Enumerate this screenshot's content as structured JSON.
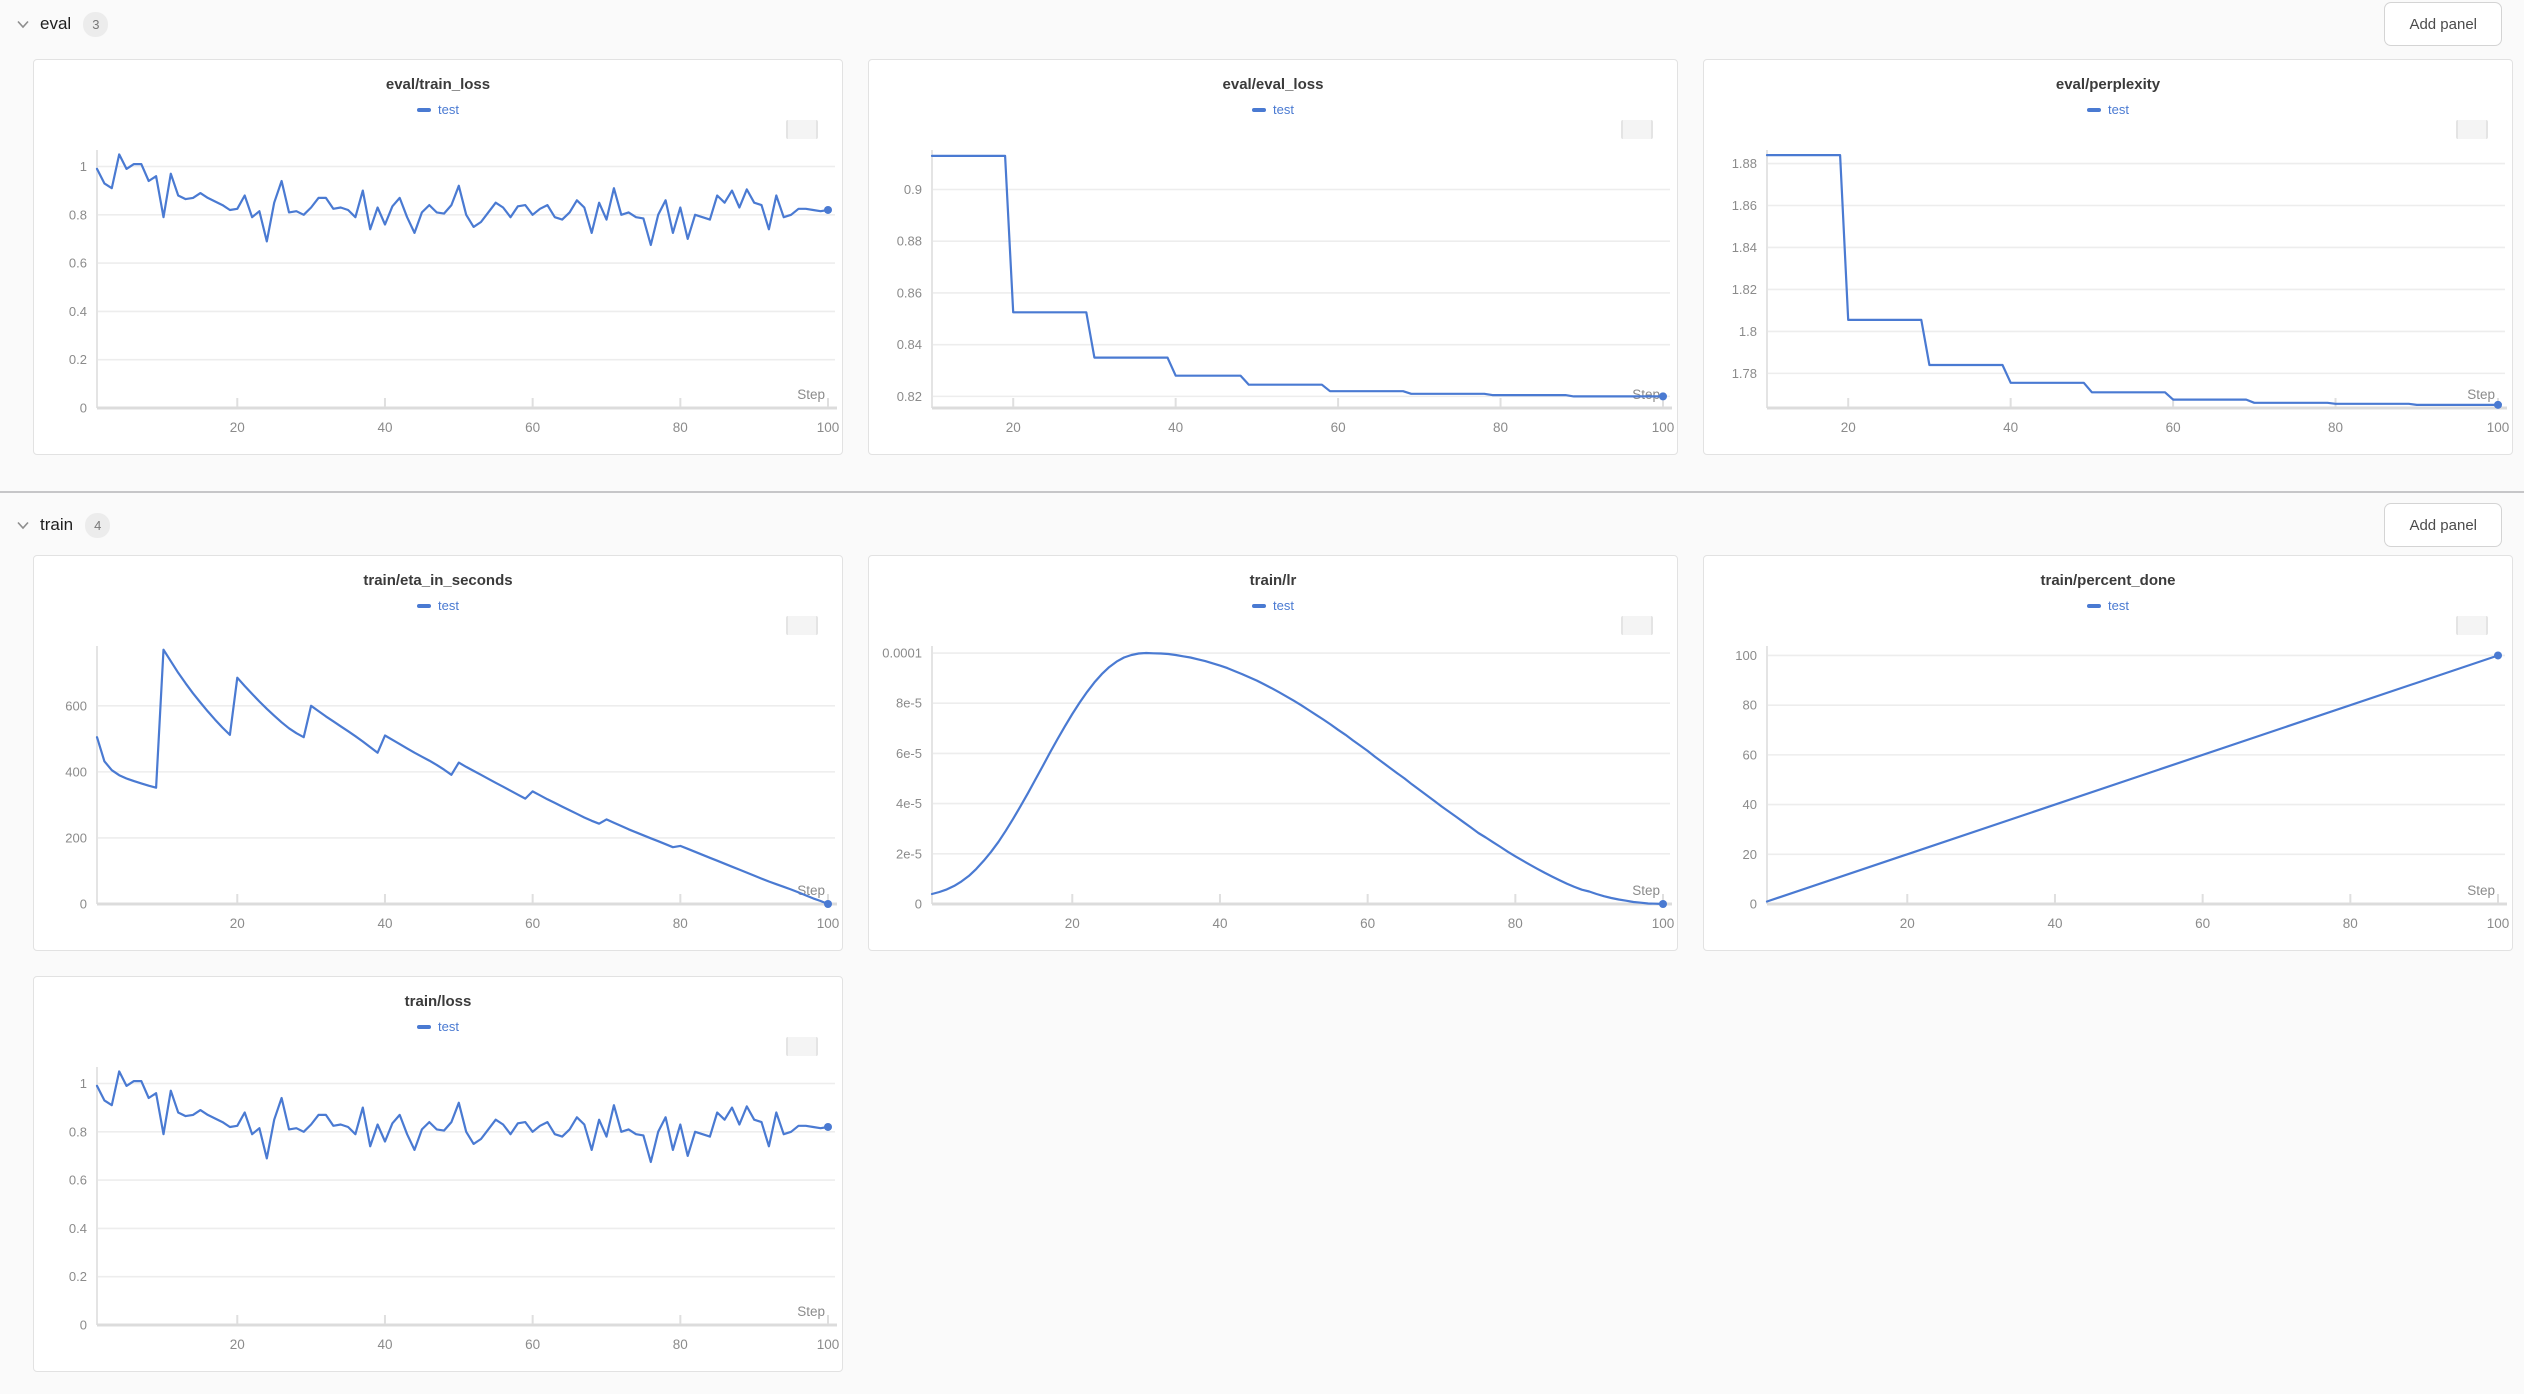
{
  "page": {
    "background": "#fafafa",
    "accent_blue": "#4a7ad2",
    "divider_color": "#c6c6c8"
  },
  "sections": [
    {
      "name": "eval",
      "badge": "3",
      "add_panel_label": "Add panel",
      "chevron_icon": "chevron-down-icon"
    },
    {
      "name": "train",
      "badge": "4",
      "add_panel_label": "Add panel",
      "chevron_icon": "chevron-down-icon"
    }
  ],
  "chart_data": [
    {
      "type": "line",
      "title": "eval/train_loss",
      "xlabel": "Step",
      "legend_position": "top-center",
      "grid": true,
      "color": "#4a7ad2",
      "x_min": 1,
      "x_max": 100,
      "x_ticks": [
        20,
        40,
        60,
        80,
        100
      ],
      "y_min": 0,
      "y_max": 1.06,
      "y_ticks": [
        {
          "v": 0,
          "label": "0"
        },
        {
          "v": 0.2,
          "label": "0.2"
        },
        {
          "v": 0.4,
          "label": "0.4"
        },
        {
          "v": 0.6,
          "label": "0.6"
        },
        {
          "v": 0.8,
          "label": "0.8"
        },
        {
          "v": 1,
          "label": "1"
        }
      ],
      "end_dot": true,
      "series": [
        {
          "name": "test",
          "x_start": 1,
          "y": [
            0.99,
            0.93,
            0.91,
            1.05,
            0.99,
            1.01,
            1.01,
            0.94,
            0.96,
            0.79,
            0.97,
            0.88,
            0.865,
            0.87,
            0.89,
            0.87,
            0.855,
            0.84,
            0.82,
            0.825,
            0.88,
            0.79,
            0.815,
            0.69,
            0.85,
            0.94,
            0.81,
            0.815,
            0.8,
            0.83,
            0.87,
            0.87,
            0.825,
            0.83,
            0.82,
            0.79,
            0.9,
            0.74,
            0.83,
            0.76,
            0.835,
            0.87,
            0.79,
            0.725,
            0.81,
            0.84,
            0.81,
            0.805,
            0.84,
            0.92,
            0.8,
            0.75,
            0.77,
            0.81,
            0.85,
            0.83,
            0.79,
            0.835,
            0.84,
            0.8,
            0.825,
            0.84,
            0.79,
            0.78,
            0.81,
            0.86,
            0.83,
            0.725,
            0.85,
            0.78,
            0.91,
            0.8,
            0.81,
            0.79,
            0.785,
            0.675,
            0.8,
            0.86,
            0.725,
            0.83,
            0.7,
            0.8,
            0.79,
            0.78,
            0.88,
            0.85,
            0.9,
            0.83,
            0.905,
            0.85,
            0.84,
            0.74,
            0.88,
            0.79,
            0.8,
            0.825,
            0.825,
            0.82,
            0.815,
            0.82
          ]
        }
      ]
    },
    {
      "type": "line",
      "title": "eval/eval_loss",
      "xlabel": "Step",
      "legend_position": "top-center",
      "grid": true,
      "color": "#4a7ad2",
      "x_min": 10,
      "x_max": 100,
      "x_ticks": [
        20,
        40,
        60,
        80,
        100
      ],
      "y_min": 0.8155,
      "y_max": 0.9145,
      "y_ticks": [
        {
          "v": 0.82,
          "label": "0.82"
        },
        {
          "v": 0.84,
          "label": "0.84"
        },
        {
          "v": 0.86,
          "label": "0.86"
        },
        {
          "v": 0.88,
          "label": "0.88"
        },
        {
          "v": 0.9,
          "label": "0.9"
        }
      ],
      "end_dot": true,
      "series": [
        {
          "name": "test",
          "x": [
            10,
            19,
            20,
            29,
            30,
            39,
            40,
            48,
            49,
            58,
            59,
            68,
            69,
            78,
            79,
            88,
            89,
            100
          ],
          "y": [
            0.913,
            0.913,
            0.8525,
            0.8525,
            0.835,
            0.835,
            0.828,
            0.828,
            0.8245,
            0.8245,
            0.822,
            0.822,
            0.821,
            0.821,
            0.8205,
            0.8205,
            0.82,
            0.82
          ]
        }
      ]
    },
    {
      "type": "line",
      "title": "eval/perplexity",
      "xlabel": "Step",
      "legend_position": "top-center",
      "grid": true,
      "color": "#4a7ad2",
      "x_min": 10,
      "x_max": 100,
      "x_ticks": [
        20,
        40,
        60,
        80,
        100
      ],
      "y_min": 1.7635,
      "y_max": 1.8855,
      "y_ticks": [
        {
          "v": 1.78,
          "label": "1.78"
        },
        {
          "v": 1.8,
          "label": "1.8"
        },
        {
          "v": 1.82,
          "label": "1.82"
        },
        {
          "v": 1.84,
          "label": "1.84"
        },
        {
          "v": 1.86,
          "label": "1.86"
        },
        {
          "v": 1.88,
          "label": "1.88"
        }
      ],
      "end_dot": true,
      "series": [
        {
          "name": "test",
          "x": [
            10,
            19,
            20,
            29,
            30,
            39,
            40,
            49,
            50,
            59,
            60,
            69,
            70,
            79,
            80,
            89,
            90,
            100
          ],
          "y": [
            1.884,
            1.884,
            1.8055,
            1.8055,
            1.784,
            1.784,
            1.7755,
            1.7755,
            1.771,
            1.771,
            1.7675,
            1.7675,
            1.766,
            1.766,
            1.7655,
            1.7655,
            1.765,
            1.765
          ]
        }
      ]
    },
    {
      "type": "line",
      "title": "train/eta_in_seconds",
      "xlabel": "Step",
      "legend_position": "top-center",
      "grid": true,
      "color": "#4a7ad2",
      "x_min": 1,
      "x_max": 100,
      "x_ticks": [
        20,
        40,
        60,
        80,
        100
      ],
      "y_min": 0,
      "y_max": 775,
      "y_ticks": [
        {
          "v": 0,
          "label": "0"
        },
        {
          "v": 200,
          "label": "200"
        },
        {
          "v": 400,
          "label": "400"
        },
        {
          "v": 600,
          "label": "600"
        }
      ],
      "end_dot": true,
      "series": [
        {
          "name": "test",
          "x_start": 1,
          "y": [
            505,
            432,
            405,
            390,
            380,
            372,
            365,
            358,
            352,
            770,
            735,
            700,
            668,
            638,
            610,
            583,
            558,
            534,
            512,
            685,
            660,
            636,
            613,
            591,
            570,
            550,
            532,
            517,
            505,
            600,
            584,
            568,
            553,
            538,
            523,
            508,
            492,
            475,
            458,
            510,
            497,
            484,
            471,
            458,
            446,
            434,
            421,
            407,
            391,
            428,
            415,
            403,
            391,
            379,
            367,
            355,
            343,
            331,
            319,
            341,
            329,
            317,
            306,
            295,
            284,
            273,
            262,
            252,
            243,
            256,
            246,
            236,
            226,
            217,
            208,
            199,
            190,
            181,
            172,
            176,
            167,
            158,
            149,
            140,
            131,
            122,
            113,
            104,
            95,
            86,
            77,
            68,
            60,
            52,
            44,
            35,
            26,
            17,
            9,
            0
          ]
        }
      ]
    },
    {
      "type": "line",
      "title": "train/lr",
      "xlabel": "Step",
      "legend_position": "top-center",
      "grid": true,
      "color": "#4a7ad2",
      "x_min": 1,
      "x_max": 100,
      "x_ticks": [
        20,
        40,
        60,
        80,
        100
      ],
      "y_min": 0,
      "y_max": 0.000102,
      "y_ticks": [
        {
          "v": 0,
          "label": "0"
        },
        {
          "v": 2e-05,
          "label": "2e-5"
        },
        {
          "v": 4e-05,
          "label": "4e-5"
        },
        {
          "v": 6e-05,
          "label": "6e-5"
        },
        {
          "v": 8e-05,
          "label": "8e-5"
        },
        {
          "v": 0.0001,
          "label": "0.0001"
        }
      ],
      "end_dot": true,
      "series": [
        {
          "name": "test",
          "x_start": 1,
          "y": [
            4e-06,
            4.8e-06,
            5.8e-06,
            7.2e-06,
            9e-06,
            1.12e-05,
            1.4e-05,
            1.72e-05,
            2.08e-05,
            2.48e-05,
            2.92e-05,
            3.4e-05,
            3.9e-05,
            4.42e-05,
            4.96e-05,
            5.5e-05,
            6.04e-05,
            6.57e-05,
            7.08e-05,
            7.57e-05,
            8.03e-05,
            8.45e-05,
            8.83e-05,
            9.16e-05,
            9.44e-05,
            9.66e-05,
            9.82e-05,
            9.92e-05,
            9.98e-05,
            0.0001,
            9.99e-05,
            9.98e-05,
            9.96e-05,
            9.92e-05,
            9.87e-05,
            9.82e-05,
            9.75e-05,
            9.68e-05,
            9.59e-05,
            9.5e-05,
            9.4e-05,
            9.28e-05,
            9.16e-05,
            9.03e-05,
            8.9e-05,
            8.75e-05,
            8.6e-05,
            8.44e-05,
            8.27e-05,
            8.1e-05,
            7.92e-05,
            7.73e-05,
            7.54e-05,
            7.35e-05,
            7.15e-05,
            6.94e-05,
            6.74e-05,
            6.52e-05,
            6.31e-05,
            6.1e-05,
            5.87e-05,
            5.65e-05,
            5.43e-05,
            5.21e-05,
            5e-05,
            4.77e-05,
            4.55e-05,
            4.33e-05,
            4.11e-05,
            3.89e-05,
            3.68e-05,
            3.47e-05,
            3.26e-05,
            3.05e-05,
            2.83e-05,
            2.65e-05,
            2.46e-05,
            2.27e-05,
            2.08e-05,
            1.9e-05,
            1.73e-05,
            1.56e-05,
            1.4e-05,
            1.24e-05,
            1.09e-05,
            9.5e-06,
            8.1e-06,
            6.8e-06,
            5.7e-06,
            5e-06,
            4e-06,
            3.1e-06,
            2.4e-06,
            1.8e-06,
            1.3e-06,
            8e-07,
            5e-07,
            2e-07,
            1e-07,
            0
          ]
        }
      ]
    },
    {
      "type": "line",
      "title": "train/percent_done",
      "xlabel": "Step",
      "legend_position": "top-center",
      "grid": true,
      "color": "#4a7ad2",
      "note": "percent_done equals step number (linear 1 to 100)",
      "x_min": 1,
      "x_max": 100,
      "x_ticks": [
        20,
        40,
        60,
        80,
        100
      ],
      "y_min": 0,
      "y_max": 103,
      "y_ticks": [
        {
          "v": 0,
          "label": "0"
        },
        {
          "v": 20,
          "label": "20"
        },
        {
          "v": 40,
          "label": "40"
        },
        {
          "v": 60,
          "label": "60"
        },
        {
          "v": 80,
          "label": "80"
        },
        {
          "v": 100,
          "label": "100"
        }
      ],
      "end_dot": true,
      "series": [
        {
          "name": "test",
          "x": [
            1,
            100
          ],
          "y": [
            1,
            100
          ]
        }
      ]
    },
    {
      "type": "line",
      "title": "train/loss",
      "xlabel": "Step",
      "legend_position": "top-center",
      "grid": true,
      "color": "#4a7ad2",
      "x_min": 1,
      "x_max": 100,
      "x_ticks": [
        20,
        40,
        60,
        80,
        100
      ],
      "y_min": 0,
      "y_max": 1.06,
      "y_ticks": [
        {
          "v": 0,
          "label": "0"
        },
        {
          "v": 0.2,
          "label": "0.2"
        },
        {
          "v": 0.4,
          "label": "0.4"
        },
        {
          "v": 0.6,
          "label": "0.6"
        },
        {
          "v": 0.8,
          "label": "0.8"
        },
        {
          "v": 1,
          "label": "1"
        }
      ],
      "end_dot": true,
      "series": [
        {
          "name": "test",
          "x_start": 1,
          "y": [
            0.99,
            0.93,
            0.91,
            1.05,
            0.99,
            1.01,
            1.01,
            0.94,
            0.96,
            0.79,
            0.97,
            0.88,
            0.865,
            0.87,
            0.89,
            0.87,
            0.855,
            0.84,
            0.82,
            0.825,
            0.88,
            0.79,
            0.815,
            0.69,
            0.85,
            0.94,
            0.81,
            0.815,
            0.8,
            0.83,
            0.87,
            0.87,
            0.825,
            0.83,
            0.82,
            0.79,
            0.9,
            0.74,
            0.83,
            0.76,
            0.835,
            0.87,
            0.79,
            0.725,
            0.81,
            0.84,
            0.81,
            0.805,
            0.84,
            0.92,
            0.8,
            0.75,
            0.77,
            0.81,
            0.85,
            0.83,
            0.79,
            0.835,
            0.84,
            0.8,
            0.825,
            0.84,
            0.79,
            0.78,
            0.81,
            0.86,
            0.83,
            0.725,
            0.85,
            0.78,
            0.91,
            0.8,
            0.81,
            0.79,
            0.785,
            0.675,
            0.8,
            0.86,
            0.725,
            0.83,
            0.7,
            0.8,
            0.79,
            0.78,
            0.88,
            0.85,
            0.9,
            0.83,
            0.905,
            0.85,
            0.84,
            0.74,
            0.88,
            0.79,
            0.8,
            0.825,
            0.825,
            0.82,
            0.815,
            0.82
          ]
        }
      ]
    }
  ]
}
